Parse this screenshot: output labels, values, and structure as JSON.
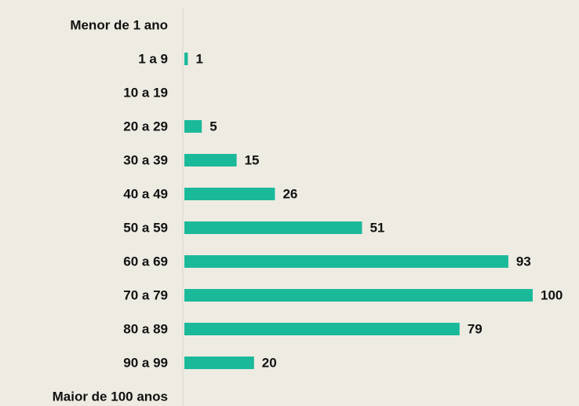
{
  "chart_data": {
    "type": "barh",
    "categories": [
      "Menor de 1 ano",
      "1 a 9",
      "10 a 19",
      "20 a 29",
      "30 a 39",
      "40 a 49",
      "50 a 59",
      "60 a 69",
      "70 a 79",
      "80 a 89",
      "90 a 99",
      "Maior de 100 anos"
    ],
    "values": [
      null,
      1,
      null,
      5,
      15,
      26,
      51,
      93,
      100,
      79,
      20,
      null
    ],
    "color": "#1ab99a",
    "xlim": [
      0,
      100
    ]
  }
}
